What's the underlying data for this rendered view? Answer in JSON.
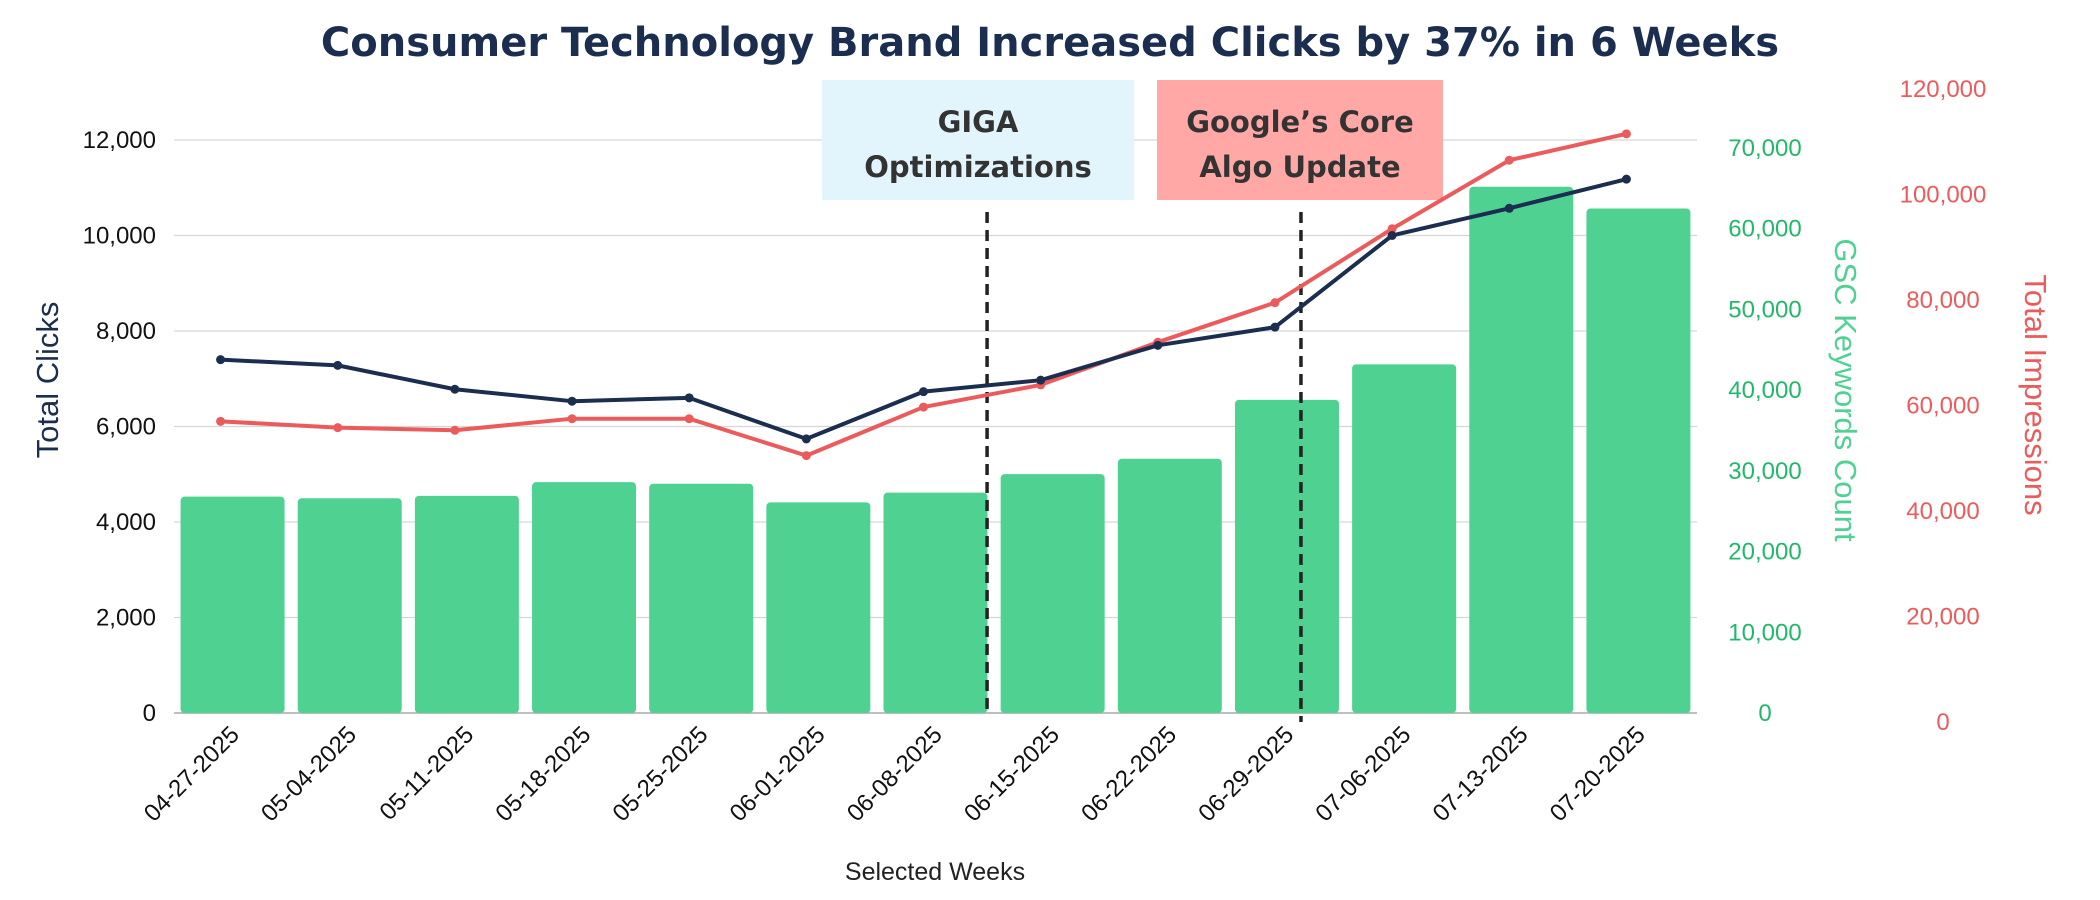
{
  "chart_data": {
    "type": "bar+line",
    "title": "Consumer Technology Brand Increased Clicks by 37% in 6 Weeks",
    "xlabel": "Selected Weeks",
    "categories": [
      "04-27-2025",
      "05-04-2025",
      "05-11-2025",
      "05-18-2025",
      "05-25-2025",
      "06-01-2025",
      "06-08-2025",
      "06-15-2025",
      "06-22-2025",
      "06-29-2025",
      "07-06-2025",
      "07-13-2025",
      "07-20-2025"
    ],
    "series": [
      {
        "name": "GSC Keywords Count",
        "type": "bar",
        "axis": "keywords",
        "color": "#4fd192",
        "values": [
          26800,
          26600,
          26900,
          28600,
          28400,
          26100,
          27300,
          29600,
          31500,
          38800,
          43200,
          65200,
          62500
        ]
      },
      {
        "name": "Total Clicks",
        "type": "line",
        "axis": "clicks",
        "color": "#1b2e50",
        "values": [
          7400,
          7280,
          6780,
          6530,
          6600,
          5740,
          6730,
          6970,
          7700,
          8080,
          10000,
          10570,
          11180
        ]
      },
      {
        "name": "Total Impressions",
        "type": "line",
        "axis": "impressions",
        "color": "#ec5b5b",
        "values": [
          57000,
          55800,
          55300,
          57500,
          57500,
          50500,
          59700,
          63900,
          72000,
          79500,
          93500,
          106500,
          111500
        ]
      }
    ],
    "axes": {
      "clicks": {
        "label": "Total Clicks",
        "range": [
          0,
          12000
        ],
        "ticks": [
          "0",
          "2,000",
          "4,000",
          "6,000",
          "8,000",
          "10,000",
          "12,000"
        ],
        "color": "#1b2e50"
      },
      "keywords": {
        "label": "GSC Keywords Count",
        "range": [
          0,
          70000
        ],
        "ticks": [
          "0",
          "10,000",
          "20,000",
          "30,000",
          "40,000",
          "50,000",
          "60,000",
          "70,000"
        ],
        "color": "#22b86a"
      },
      "impressions": {
        "label": "Total Impressions",
        "range": [
          0,
          120000
        ],
        "ticks": [
          "0",
          "20,000",
          "40,000",
          "60,000",
          "80,000",
          "100,000",
          "120,000"
        ],
        "color": "#ec5b5b"
      }
    },
    "grid": true,
    "annotations": [
      {
        "lines": [
          "GIGA",
          "Optimizations"
        ],
        "between": [
          "06-08-2025",
          "06-15-2025"
        ],
        "box_color": "#e3f5fc"
      },
      {
        "lines": [
          "Google’s Core",
          "Algo Update"
        ],
        "at": "06-29-2025",
        "box_color": "#ffa8a6"
      }
    ]
  }
}
